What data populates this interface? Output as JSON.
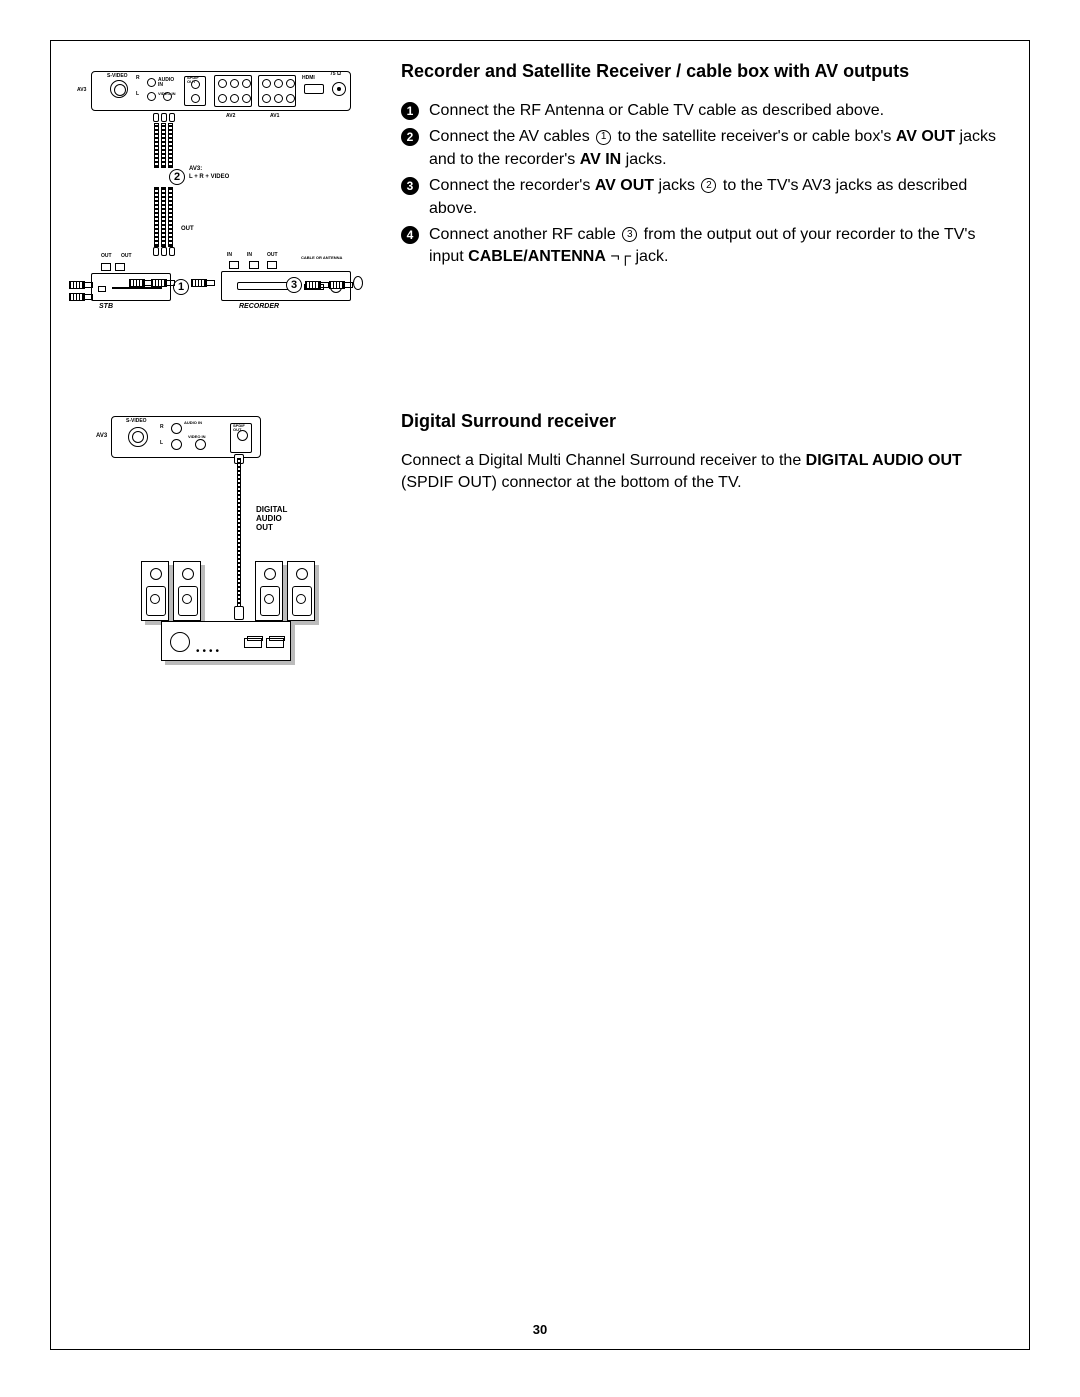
{
  "page_number": "30",
  "section1": {
    "title": "Recorder and Satellite Receiver / cable box with AV outputs",
    "steps": [
      {
        "num": "1",
        "text_parts": [
          "Connect the RF Antenna or Cable TV cable as described above."
        ]
      },
      {
        "num": "2",
        "text_parts": [
          "Connect the AV cables ",
          {
            "circ": "1"
          },
          " to the satellite receiver's or cable box's ",
          {
            "b": "AV OUT"
          },
          " jacks and to the recorder's ",
          {
            "b": "AV IN"
          },
          " jacks."
        ]
      },
      {
        "num": "3",
        "text_parts": [
          "Connect the recorder's ",
          {
            "b": "AV OUT"
          },
          " jacks  ",
          {
            "circ": "2"
          },
          "  to the TV's AV3 jacks as described above."
        ]
      },
      {
        "num": "4",
        "text_parts": [
          "Connect another RF cable ",
          {
            "circ": "3"
          },
          " from the output out of your recorder to the TV's input ",
          {
            "b": "CABLE/ANTENNA"
          },
          " ¬┌ jack."
        ]
      }
    ],
    "diagram": {
      "labels": {
        "av3": "AV3",
        "svideo": "S-VIDEO",
        "audioin": "AUDIO IN",
        "r": "R",
        "l": "L",
        "spdif": "SPDIF OUT",
        "videoin": "VIDEO IN",
        "av2": "AV2",
        "av1": "AV1",
        "hdmi": "HDMI",
        "ohm": "75 Ω",
        "av3_cable": "AV3:",
        "lrvideo": "L + R + VIDEO",
        "out": "OUT",
        "in": "IN",
        "cable_ant": "CABLE OR ANTENNA",
        "stb": "STB",
        "recorder": "RECORDER"
      },
      "ref_circles": {
        "c1": "1",
        "c2": "2",
        "c3": "3"
      }
    }
  },
  "section2": {
    "title": "Digital Surround receiver",
    "para_parts": [
      "Connect a Digital Multi Channel Surround receiver to the ",
      {
        "b": "DIGITAL AUDIO OUT"
      },
      " (SPDIF OUT) connector at the bottom of the TV."
    ],
    "diagram": {
      "labels": {
        "av3": "AV3",
        "svideo": "S-VIDEO",
        "audioin": "AUDIO IN",
        "r": "R",
        "l": "L",
        "spdif": "SPDIF OUT",
        "videoin": "VIDEO IN",
        "digital_audio": "DIGITAL AUDIO OUT"
      }
    }
  },
  "colors": {
    "fg": "#000000",
    "bg": "#ffffff",
    "shadow": "#bbbbbb"
  }
}
